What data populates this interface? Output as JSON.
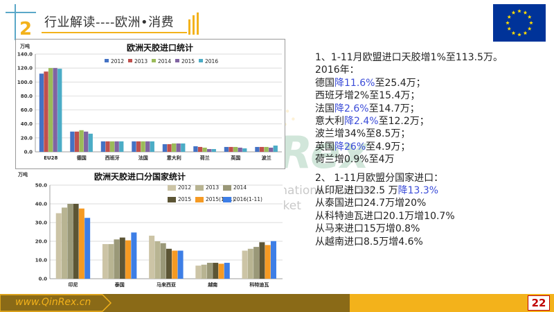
{
  "header": {
    "section_number": "2",
    "title": "行业解读----欧洲•消费"
  },
  "watermark": {
    "brand": "QinRex",
    "line1": "Qingdao International Rubber",
    "line2": "Exchange Market"
  },
  "colors": {
    "gold": "#f3b21b",
    "brown": "#8a6a17",
    "accent_blue": "#3b4cd8",
    "eu_blue": "#003399",
    "eu_star": "#ffdd00"
  },
  "right_text": {
    "lines": [
      [
        {
          "t": "1、1-11月欧盟进口天胶增1%至113.5万。"
        }
      ],
      [
        {
          "t": "2016年："
        }
      ],
      [
        {
          "t": "德国"
        },
        {
          "t": "降11.6%",
          "blue": true
        },
        {
          "t": "至25.4万；"
        }
      ],
      [
        {
          "t": "西班牙增2%至15.4万；"
        }
      ],
      [
        {
          "t": "法国"
        },
        {
          "t": "降2.6%",
          "blue": true
        },
        {
          "t": "至14.7万；"
        }
      ],
      [
        {
          "t": "意大利"
        },
        {
          "t": "降2.4%",
          "blue": true
        },
        {
          "t": "至12.2万；"
        }
      ],
      [
        {
          "t": "波兰增34%至8.5万；"
        }
      ],
      [
        {
          "t": "英国"
        },
        {
          "t": "降26%",
          "blue": true
        },
        {
          "t": "至4.9万；"
        }
      ],
      [
        {
          "t": "荷兰增0.9%至4万"
        }
      ],
      [
        {
          "t": "",
          "gap": true
        }
      ],
      [
        {
          "t": "2、  1-11月欧盟分国家进口："
        }
      ],
      [
        {
          "t": "从印尼进口32.5 万"
        },
        {
          "t": "降13.3%",
          "blue": true
        }
      ],
      [
        {
          "t": "从泰国进口24.7万增20%"
        }
      ],
      [
        {
          "t": "从科特迪瓦进口20.1万增10.7%"
        }
      ],
      [
        {
          "t": "从马来进口15万增0.8%"
        }
      ],
      [
        {
          "t": "从越南进口8.5万增4.6%"
        }
      ]
    ]
  },
  "footer": {
    "url": "www.QinRex.cn",
    "page_number": "22"
  },
  "chart_data": [
    {
      "type": "bar",
      "title": "欧洲天胶进口统计",
      "ylabel": "万吨",
      "ylim": [
        0,
        140
      ],
      "yticks": [
        "0.0",
        "20.0",
        "40.0",
        "60.0",
        "80.0",
        "100.0",
        "120.0",
        "140.0"
      ],
      "grid": true,
      "legend_position": "top",
      "categories": [
        "EU28",
        "德国",
        "西班牙",
        "法国",
        "意大利",
        "荷兰",
        "英国",
        "波兰"
      ],
      "series": [
        {
          "name": "2012",
          "color": "#4472c4",
          "values": [
            112,
            29,
            15,
            15,
            11,
            8,
            7,
            7
          ]
        },
        {
          "name": "2013",
          "color": "#c0504d",
          "values": [
            115,
            29,
            15,
            15,
            11,
            7,
            7,
            7
          ]
        },
        {
          "name": "2014",
          "color": "#9bbb59",
          "values": [
            120,
            31,
            15,
            15,
            12,
            6,
            7,
            7
          ]
        },
        {
          "name": "2015",
          "color": "#8064a2",
          "values": [
            120,
            29,
            15,
            15,
            12,
            4,
            6,
            6
          ]
        },
        {
          "name": "2016",
          "color": "#4bacc6",
          "values": [
            119,
            26,
            15,
            15,
            12,
            4,
            5,
            9
          ]
        }
      ]
    },
    {
      "type": "bar",
      "title": "欧洲天胶进口分国家统计",
      "ylabel": "万吨",
      "ylim": [
        0,
        50
      ],
      "yticks": [
        "0.0",
        "10.0",
        "20.0",
        "30.0",
        "40.0",
        "50.0"
      ],
      "grid": true,
      "legend_position": "top",
      "categories": [
        "印尼",
        "泰国",
        "马来西亚",
        "越南",
        "科特迪瓦"
      ],
      "series": [
        {
          "name": "2012",
          "color": "#ccc4a6",
          "values": [
            35,
            18.5,
            23,
            7,
            15
          ]
        },
        {
          "name": "2013",
          "color": "#b8b492",
          "values": [
            38,
            18.5,
            20,
            7.5,
            16
          ]
        },
        {
          "name": "2014",
          "color": "#9a9878",
          "values": [
            40,
            21,
            19,
            8.5,
            17
          ]
        },
        {
          "name": "2015",
          "color": "#5c5535",
          "values": [
            40,
            22,
            16,
            8.5,
            19.5
          ]
        },
        {
          "name": "2015(1-11)",
          "color": "#f59a23",
          "values": [
            37.5,
            20.5,
            15,
            8,
            18
          ]
        },
        {
          "name": "2016(1-11)",
          "color": "#3d7ee6",
          "values": [
            32.5,
            24.7,
            15,
            8.5,
            20.1
          ]
        }
      ]
    }
  ]
}
